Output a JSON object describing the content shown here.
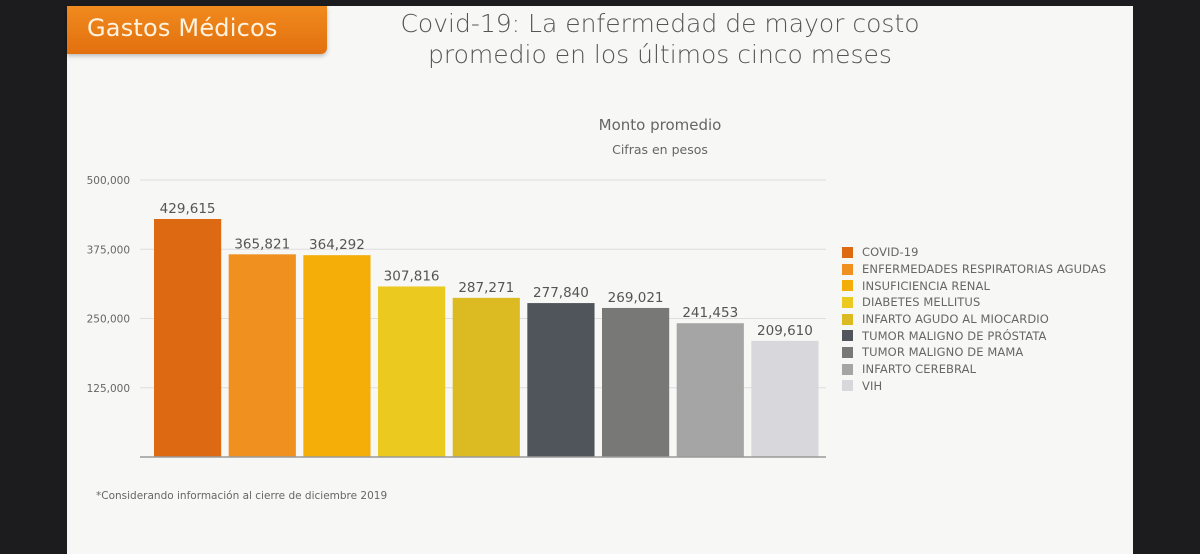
{
  "header": {
    "tag": "Gastos Médicos",
    "title_line1": "Covid-19: La enfermedad de mayor costo",
    "title_line2": "promedio en los últimos cinco meses"
  },
  "chart_data": {
    "type": "bar",
    "title": "Monto promedio",
    "subtitle": "Cifras en pesos",
    "xlabel": "",
    "ylabel": "",
    "ylim": [
      0,
      500000
    ],
    "yticks": [
      125000,
      250000,
      375000,
      500000
    ],
    "ytick_labels": [
      "125,000",
      "250,000",
      "375,000",
      "500,000"
    ],
    "grid": true,
    "legend_position": "right",
    "categories": [
      "COVID-19",
      "ENFERMEDADES RESPIRATORIAS AGUDAS",
      "INSUFICIENCIA RENAL",
      "DIABETES MELLITUS",
      "INFARTO AGUDO AL MIOCARDIO",
      "TUMOR MALIGNO DE PRÓSTATA",
      "TUMOR MALIGNO DE MAMA",
      "INFARTO CEREBRAL",
      "VIH"
    ],
    "values": [
      429615,
      365821,
      364292,
      307816,
      287271,
      277840,
      269021,
      241453,
      209610
    ],
    "value_labels": [
      "429,615",
      "365,821",
      "364,292",
      "307,816",
      "287,271",
      "277,840",
      "269,021",
      "241,453",
      "209,610"
    ],
    "colors": [
      "#dd6a12",
      "#f0901e",
      "#f5ad07",
      "#ecc91e",
      "#dcbb22",
      "#50555c",
      "#787877",
      "#a5a5a6",
      "#d8d7dc"
    ]
  },
  "footnote": "*Considerando información al cierre de diciembre 2019"
}
